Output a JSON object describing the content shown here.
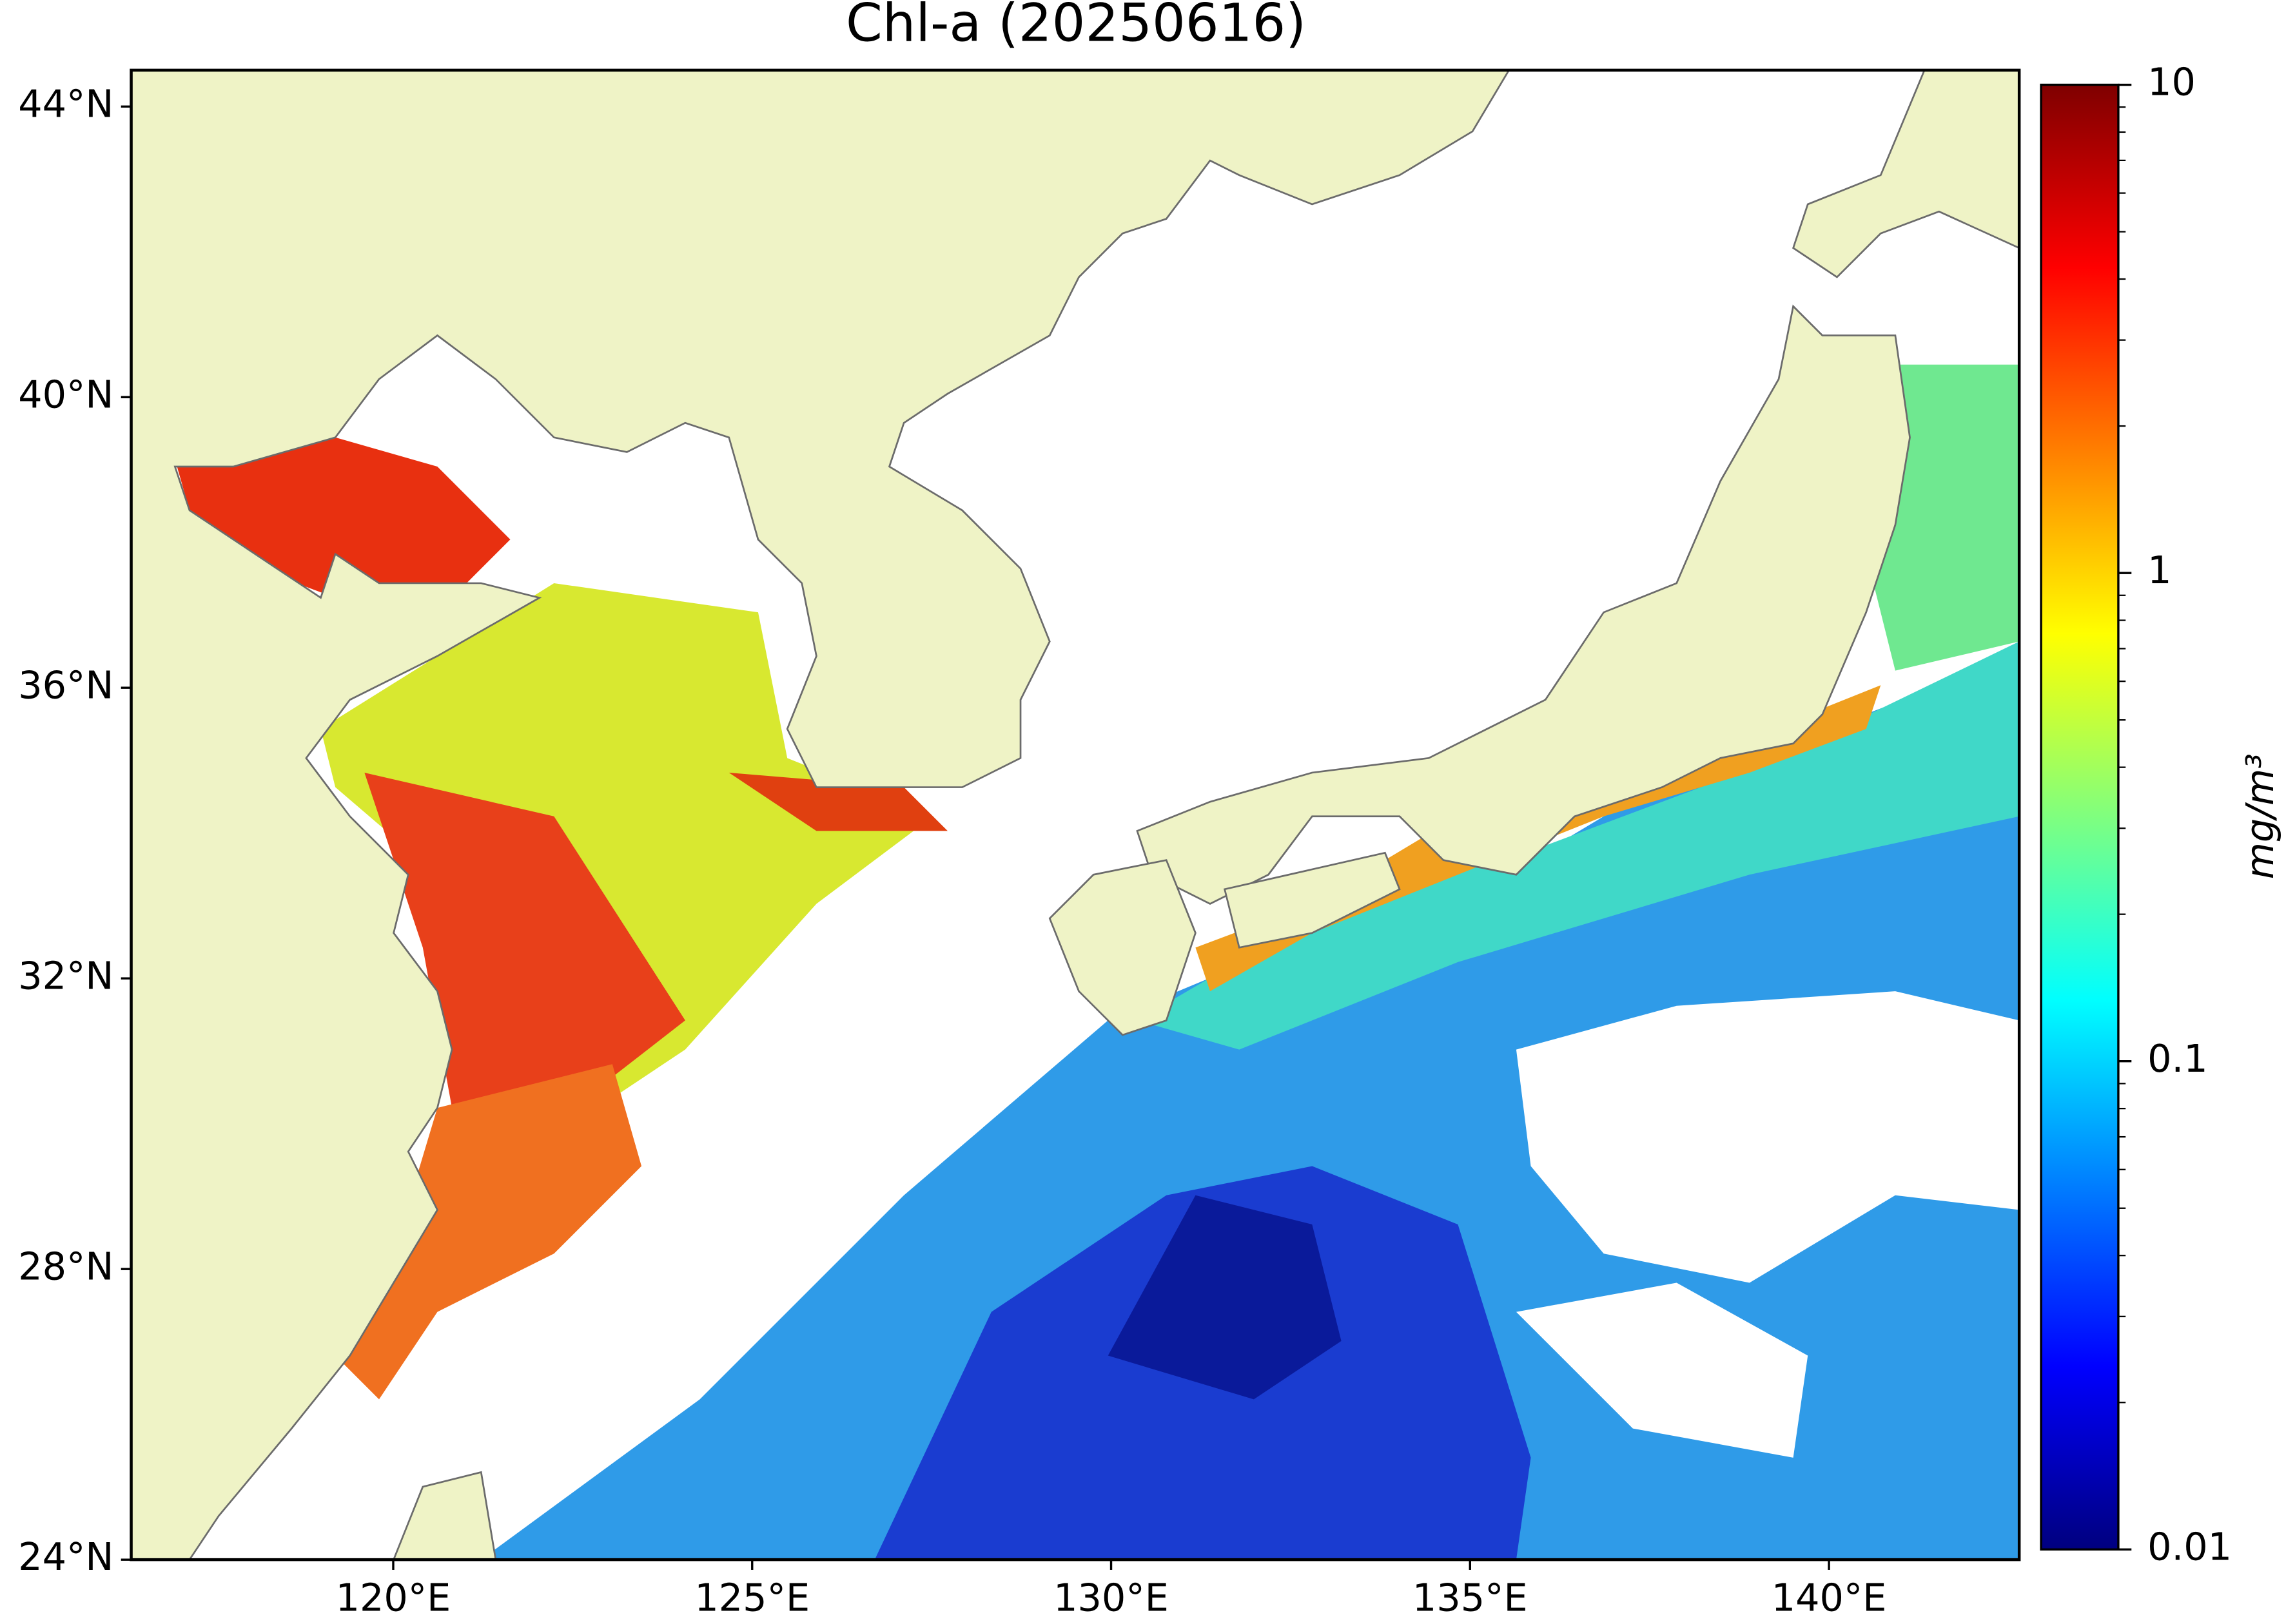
{
  "chart_data": {
    "type": "map",
    "title": "Chl-a (20250616)",
    "land_color": "#eff3c6",
    "xlim": [
      116.35,
      142.65
    ],
    "ylim": [
      24,
      44.5
    ],
    "xticks": [
      {
        "value": 120,
        "label": "120°E"
      },
      {
        "value": 125,
        "label": "125°E"
      },
      {
        "value": 130,
        "label": "130°E"
      },
      {
        "value": 135,
        "label": "135°E"
      },
      {
        "value": 140,
        "label": "140°E"
      }
    ],
    "yticks": [
      {
        "value": 24,
        "label": "24°N"
      },
      {
        "value": 28,
        "label": "28°N"
      },
      {
        "value": 32,
        "label": "32°N"
      },
      {
        "value": 36,
        "label": "36°N"
      },
      {
        "value": 40,
        "label": "40°N"
      },
      {
        "value": 44,
        "label": "44°N"
      }
    ],
    "colorbar": {
      "label": "mg/m³",
      "scale": "log",
      "colormap": "jet",
      "lim": [
        0.01,
        10
      ],
      "ticks": [
        0.01,
        0.1,
        1,
        10
      ]
    }
  }
}
